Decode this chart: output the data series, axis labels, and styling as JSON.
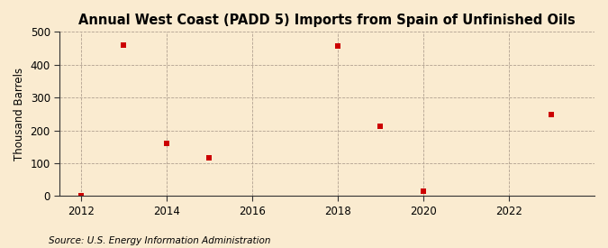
{
  "title": "Annual West Coast (PADD 5) Imports from Spain of Unfinished Oils",
  "ylabel": "Thousand Barrels",
  "source": "Source: U.S. Energy Information Administration",
  "xlim": [
    2011.5,
    2024.0
  ],
  "ylim": [
    0,
    500
  ],
  "yticks": [
    0,
    100,
    200,
    300,
    400,
    500
  ],
  "xticks": [
    2012,
    2014,
    2016,
    2018,
    2020,
    2022
  ],
  "data_x": [
    2012,
    2013,
    2014,
    2015,
    2018,
    2019,
    2020,
    2023
  ],
  "data_y": [
    2,
    460,
    160,
    115,
    457,
    212,
    15,
    248
  ],
  "marker_color": "#cc0000",
  "marker_size": 4,
  "bg_color": "#faebd0",
  "plot_bg_color": "#faebd0",
  "grid_color": "#b0a090",
  "title_fontsize": 10.5,
  "label_fontsize": 8.5,
  "tick_fontsize": 8.5,
  "source_fontsize": 7.5
}
